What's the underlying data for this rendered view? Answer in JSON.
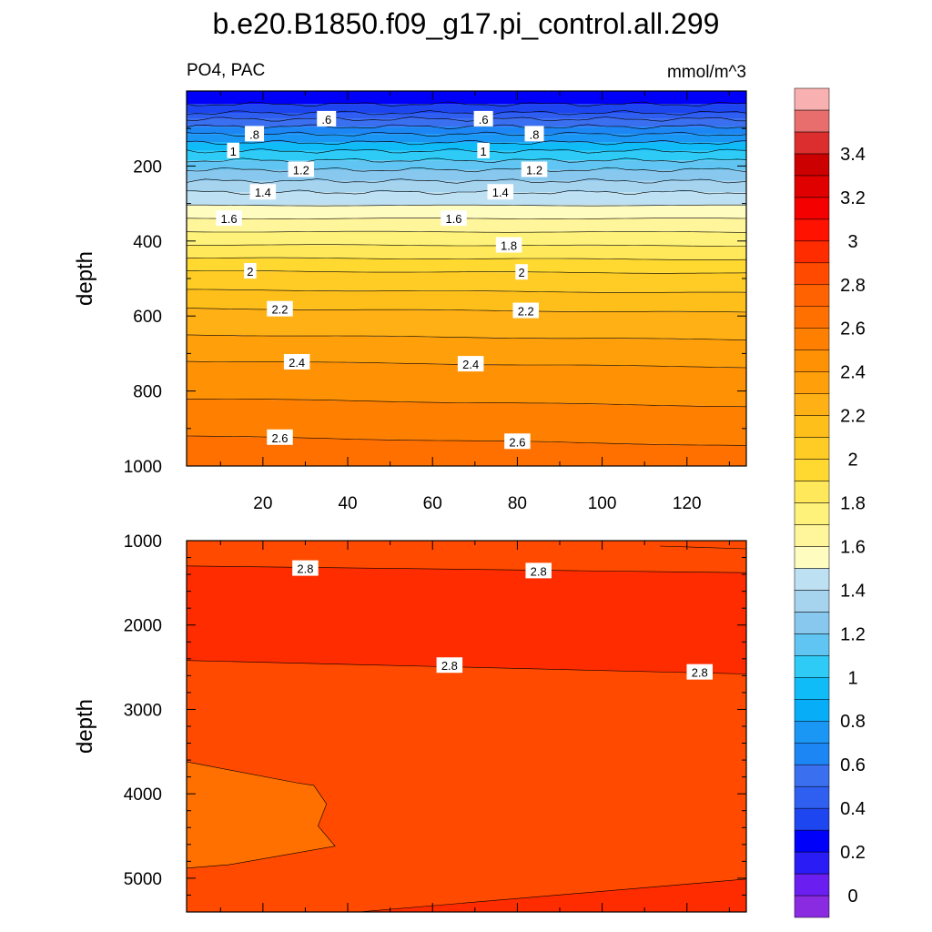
{
  "title": "b.e20.B1850.f09_g17.pi_control.all.299",
  "left_subtitle": "PO4, PAC",
  "right_subtitle": "mmol/m^3",
  "colors": {
    "levels": [
      0,
      0.2,
      0.4,
      0.6,
      0.8,
      1.0,
      1.2,
      1.4,
      1.6,
      1.8,
      2.0,
      2.2,
      2.4,
      2.6,
      2.8,
      3.0,
      3.2,
      3.4,
      3.6
    ],
    "fills": [
      "#8a2be2",
      "#6a1ef0",
      "#2a1cf5",
      "#0000fa",
      "#1e46f0",
      "#2f5ff0",
      "#3a6ff0",
      "#1c86f5",
      "#1a97f5",
      "#08adf8",
      "#10bcf8",
      "#2ecbf7",
      "#60c5f2",
      "#89c8ee",
      "#a6d4ef",
      "#bde0f2",
      "#fffcc0",
      "#fff59a",
      "#fff27a",
      "#ffe85a",
      "#ffd930",
      "#ffcc26",
      "#ffbf1a",
      "#ffb014",
      "#ffa00a",
      "#ff9105",
      "#ff8000",
      "#ff7000",
      "#ff6200",
      "#ff4a00",
      "#ff2c00",
      "#ff1200",
      "#f40000",
      "#e00000",
      "#cc0000",
      "#dc2e2e",
      "#e86e6e",
      "#f9b0b0"
    ]
  },
  "chart_data": [
    {
      "type": "contour",
      "panel": "upper",
      "variable": "PO4",
      "region": "PAC",
      "units": "mmol/m^3",
      "ylabel": "depth",
      "xlim": [
        2,
        134
      ],
      "ylim": [
        1000,
        0
      ],
      "xticks": [
        20,
        40,
        60,
        80,
        100,
        120
      ],
      "yticks": [
        200,
        400,
        600,
        800,
        1000
      ],
      "contour_interval": 0.1,
      "profile": [
        {
          "depth": 20,
          "value": 0.35
        },
        {
          "depth": 50,
          "value": 0.45
        },
        {
          "depth": 75,
          "value": 0.6
        },
        {
          "depth": 115,
          "value": 0.8
        },
        {
          "depth": 160,
          "value": 1.0
        },
        {
          "depth": 210,
          "value": 1.2
        },
        {
          "depth": 270,
          "value": 1.4
        },
        {
          "depth": 340,
          "value": 1.6
        },
        {
          "depth": 410,
          "value": 1.8
        },
        {
          "depth": 480,
          "value": 2.0
        },
        {
          "depth": 580,
          "value": 2.2
        },
        {
          "depth": 720,
          "value": 2.4
        },
        {
          "depth": 920,
          "value": 2.6
        },
        {
          "depth": 1000,
          "value": 2.66
        }
      ],
      "contour_labels": [
        {
          "text": ".6",
          "x": 35,
          "depth": 75
        },
        {
          "text": ".6",
          "x": 72,
          "depth": 75
        },
        {
          "text": ".8",
          "x": 18,
          "depth": 115
        },
        {
          "text": ".8",
          "x": 84,
          "depth": 115
        },
        {
          "text": "1",
          "x": 13,
          "depth": 160
        },
        {
          "text": "1",
          "x": 72,
          "depth": 160
        },
        {
          "text": "1.2",
          "x": 29,
          "depth": 210
        },
        {
          "text": "1.2",
          "x": 84,
          "depth": 210
        },
        {
          "text": "1.4",
          "x": 20,
          "depth": 270
        },
        {
          "text": "1.4",
          "x": 76,
          "depth": 270
        },
        {
          "text": "1.6",
          "x": 12,
          "depth": 340
        },
        {
          "text": "1.6",
          "x": 65,
          "depth": 340
        },
        {
          "text": "1.8",
          "x": 78,
          "depth": 410
        },
        {
          "text": "2",
          "x": 17,
          "depth": 480
        },
        {
          "text": "2",
          "x": 81,
          "depth": 480
        },
        {
          "text": "2.2",
          "x": 24,
          "depth": 580
        },
        {
          "text": "2.2",
          "x": 82,
          "depth": 580
        },
        {
          "text": "2.4",
          "x": 28,
          "depth": 720
        },
        {
          "text": "2.4",
          "x": 69,
          "depth": 720
        },
        {
          "text": "2.6",
          "x": 24,
          "depth": 920
        },
        {
          "text": "2.6",
          "x": 80,
          "depth": 920
        }
      ]
    },
    {
      "type": "contour",
      "panel": "lower",
      "ylabel": "depth",
      "xlim": [
        2,
        134
      ],
      "ylim": [
        5400,
        1000
      ],
      "yticks": [
        1000,
        2000,
        3000,
        4000,
        5000
      ],
      "regions": [
        {
          "name": "shallow",
          "value": 2.75,
          "top_depth": 1000,
          "bottom_depth_left": 1300,
          "bottom_depth_right": 1380
        },
        {
          "name": "core",
          "value": 2.85,
          "top_depth_left": 1300,
          "top_depth_right": 1380,
          "bottom_depth_left": 2420,
          "bottom_depth_right": 2580
        },
        {
          "name": "deep",
          "value": 2.75,
          "top_depth_left": 2420,
          "top_depth_right": 2580
        },
        {
          "name": "southwest-pocket",
          "value": 2.65,
          "x_max": 37,
          "depth_top": 3620,
          "depth_bottom": 4880
        },
        {
          "name": "bottom-east",
          "value": 2.85,
          "x_min": 30,
          "depth_top_right": 5010,
          "depth_bottom": 5400
        }
      ],
      "contour_labels": [
        {
          "text": "2.8",
          "x": 30,
          "depth": 1330
        },
        {
          "text": "2.8",
          "x": 85,
          "depth": 1360
        },
        {
          "text": "2.8",
          "x": 64,
          "depth": 2480
        },
        {
          "text": "2.8",
          "x": 123,
          "depth": 2560
        }
      ]
    }
  ],
  "colorbar": {
    "labels": [
      "0",
      "0.2",
      "0.4",
      "0.6",
      "0.8",
      "1",
      "1.2",
      "1.4",
      "1.6",
      "1.8",
      "2",
      "2.2",
      "2.4",
      "2.6",
      "2.8",
      "3",
      "3.2",
      "3.4"
    ]
  }
}
